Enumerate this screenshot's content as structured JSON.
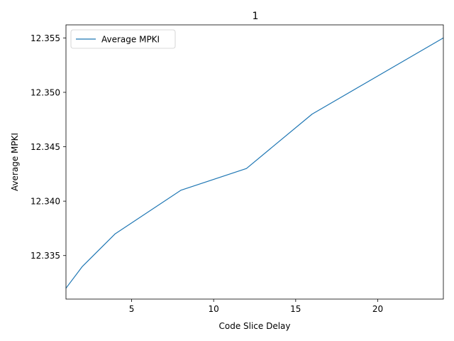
{
  "chart_data": {
    "type": "line",
    "title": "1",
    "xlabel": "Code Slice Delay",
    "ylabel": "Average MPKI",
    "xlim": [
      1,
      24
    ],
    "ylim": [
      12.331,
      12.3562
    ],
    "xticks": [
      5,
      10,
      15,
      20
    ],
    "yticks": [
      12.335,
      12.34,
      12.345,
      12.35,
      12.355
    ],
    "legend": "top-left",
    "grid": false,
    "series": [
      {
        "name": "Average MPKI",
        "color": "#1f77b4",
        "x": [
          1,
          2,
          4,
          8,
          12,
          16,
          24
        ],
        "y": [
          12.332,
          12.334,
          12.337,
          12.341,
          12.343,
          12.348,
          12.355
        ]
      }
    ]
  }
}
